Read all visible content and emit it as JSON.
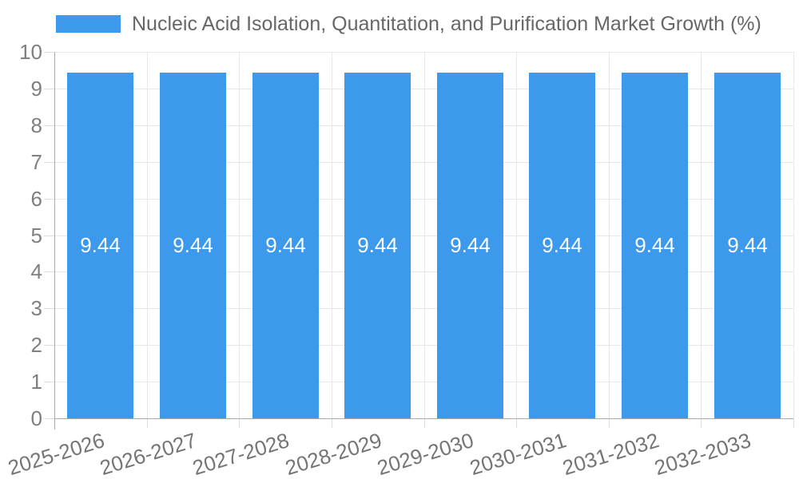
{
  "chart_data": {
    "type": "bar",
    "title": "Nucleic Acid Isolation, Quantitation, and Purification Market Growth (%)",
    "categories": [
      "2025-2026",
      "2026-2027",
      "2027-2028",
      "2028-2029",
      "2029-2030",
      "2030-2031",
      "2031-2032",
      "2032-2033"
    ],
    "values": [
      9.44,
      9.44,
      9.44,
      9.44,
      9.44,
      9.44,
      9.44,
      9.44
    ],
    "bar_labels": [
      "9.44",
      "9.44",
      "9.44",
      "9.44",
      "9.44",
      "9.44",
      "9.44",
      "9.44"
    ],
    "xlabel": "",
    "ylabel": "",
    "ylim": [
      0,
      10
    ],
    "yticks": [
      0,
      1,
      2,
      3,
      4,
      5,
      6,
      7,
      8,
      9,
      10
    ],
    "grid": true,
    "legend_position": "top",
    "x_tick_rotation_deg": -17
  },
  "legend": {
    "label": "Nucleic Acid Isolation, Quantitation, and Purification Market Growth (%)"
  },
  "colors": {
    "bar": "#3C99EC",
    "grid": "#e8e8e8",
    "tick": "#dcdcdc",
    "axis": "#ababab",
    "y_label_text": "#7f7f7f",
    "x_label_text": "#757575",
    "legend_text": "#676767",
    "value_label_text": "#ffffff",
    "background": "#ffffff"
  }
}
